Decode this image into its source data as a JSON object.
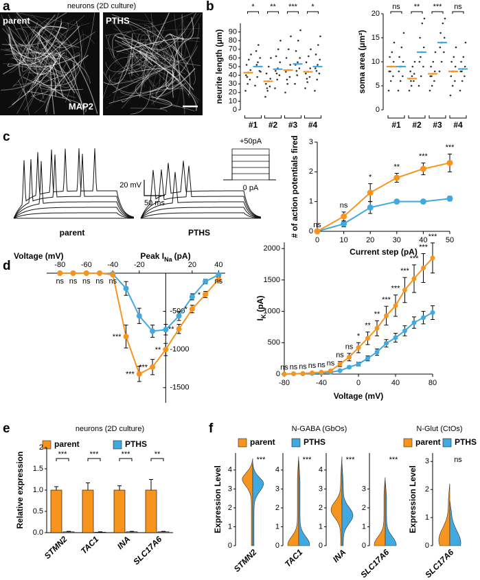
{
  "chart_data": [
    {
      "type": "image",
      "panel": "a",
      "title": "neurons (2D culture)",
      "images": [
        {
          "label": "parent",
          "stain": "MAP2"
        },
        {
          "label": "PTHS"
        }
      ]
    },
    {
      "type": "dot",
      "panel": "b",
      "ylabel": "neurite length (μm)",
      "categories": [
        "#1",
        "#2",
        "#3",
        "#4"
      ],
      "significance": [
        "*",
        "**",
        "***",
        "*"
      ],
      "ylim": [
        0,
        100
      ],
      "yticks": [
        0,
        10,
        20,
        30,
        40,
        50,
        60,
        70,
        80,
        90
      ],
      "series": [
        {
          "color": "#f7941d",
          "medians": [
            43,
            33,
            46,
            44
          ],
          "points": [
            [
              22,
              30,
              35,
              40,
              43,
              46,
              52,
              58,
              64,
              38
            ],
            [
              15,
              22,
              27,
              30,
              33,
              36,
              42,
              50,
              60,
              25
            ],
            [
              20,
              30,
              38,
              44,
              46,
              52,
              60,
              70,
              85,
              35
            ],
            [
              25,
              32,
              38,
              42,
              44,
              48,
              55,
              62,
              70,
              36
            ]
          ]
        },
        {
          "color": "#3fa9e0",
          "medians": [
            50,
            47,
            53,
            50
          ],
          "points": [
            [
              28,
              38,
              45,
              50,
              55,
              60,
              68,
              75,
              44,
              52
            ],
            [
              25,
              35,
              40,
              45,
              48,
              55,
              62,
              70,
              80,
              42
            ],
            [
              30,
              40,
              48,
              52,
              55,
              60,
              68,
              80,
              92,
              45
            ],
            [
              22,
              35,
              42,
              48,
              52,
              58,
              64,
              75,
              85,
              45
            ]
          ]
        }
      ]
    },
    {
      "type": "dot",
      "ylabel": "soma area (μm²)",
      "categories": [
        "#1",
        "#2",
        "#3",
        "#4"
      ],
      "significance": [
        "ns",
        "**",
        "***",
        "ns"
      ],
      "ylim": [
        0,
        20
      ],
      "yticks": [
        0,
        5,
        10,
        15,
        20
      ],
      "series": [
        {
          "color": "#f7941d",
          "medians": [
            9,
            6.5,
            7.5,
            8
          ],
          "points": [
            [
              4,
              6,
              7,
              8,
              9,
              10,
              11,
              12,
              14,
              8
            ],
            [
              4,
              5,
              6,
              6.5,
              7,
              7.5,
              8,
              9,
              10,
              6
            ],
            [
              4,
              5,
              6,
              7,
              7.5,
              8,
              9,
              10,
              12,
              7
            ],
            [
              3,
              5,
              6,
              7,
              8,
              9,
              10,
              11,
              13,
              8
            ]
          ]
        },
        {
          "color": "#3fa9e0",
          "medians": [
            9,
            12,
            14,
            8.5
          ],
          "points": [
            [
              4,
              6,
              7,
              8,
              9,
              10,
              11,
              13,
              16,
              9
            ],
            [
              5,
              7,
              9,
              10,
              12,
              13,
              15,
              18,
              19,
              11
            ],
            [
              8,
              10,
              12,
              13,
              14,
              15,
              16,
              18,
              19,
              14
            ],
            [
              4,
              6,
              7,
              8,
              8.5,
              9,
              10,
              11,
              14,
              8
            ]
          ]
        }
      ]
    },
    {
      "type": "trace",
      "panel": "c",
      "labels": [
        "parent",
        "PTHS"
      ],
      "scale_y": "20 mV",
      "scale_x": "50 ms",
      "step_top": "+50pA",
      "step_bottom": "0 pA"
    },
    {
      "type": "line",
      "x": [
        0,
        10,
        20,
        30,
        40,
        50
      ],
      "xlim": [
        0,
        50
      ],
      "xticks": [
        0,
        10,
        20,
        30,
        40,
        50
      ],
      "ylim": [
        0,
        3
      ],
      "yticks": [
        0,
        1,
        2,
        3
      ],
      "xlabel": "Current step (pA)",
      "ylabel": "# of action potentials fired",
      "significance": [
        "ns",
        "ns",
        "*",
        "**",
        "***",
        "***"
      ],
      "series": [
        {
          "color": "#f7941d",
          "values": [
            0,
            0.5,
            1.3,
            1.8,
            2.1,
            2.3
          ],
          "errors": [
            0,
            0.15,
            0.3,
            0.15,
            0.2,
            0.3
          ]
        },
        {
          "color": "#3fa9e0",
          "values": [
            0,
            0.25,
            0.8,
            1.0,
            1.0,
            1.1
          ],
          "errors": [
            0,
            0.1,
            0.2,
            0.05,
            0.05,
            0.08
          ]
        }
      ]
    },
    {
      "type": "line",
      "panel": "d",
      "x": [
        -80,
        -70,
        -60,
        -50,
        -40,
        -30,
        -20,
        -10,
        0,
        10,
        20,
        30,
        40
      ],
      "xlim": [
        -90,
        45
      ],
      "xticks": [
        -80,
        -60,
        -40,
        -20,
        20,
        40
      ],
      "ylim": [
        -1700,
        0
      ],
      "yticks": [
        -500,
        -1000,
        -1500
      ],
      "xlabel": "Voltage (mV)",
      "ylabel": {
        "text": "Peak I",
        "sub": "Na",
        "unit": "(pA)"
      },
      "significance": [
        "ns",
        "ns",
        "ns",
        "ns",
        "ns",
        "***",
        "***",
        "***",
        "**",
        "**",
        "*",
        "*",
        "ns"
      ],
      "series": [
        {
          "color": "#f7941d",
          "values": [
            0,
            0,
            0,
            0,
            -20,
            -830,
            -1320,
            -1230,
            -1000,
            -730,
            -470,
            -280,
            -80
          ],
          "errors": [
            0,
            0,
            0,
            0,
            20,
            150,
            100,
            100,
            80,
            60,
            50,
            40,
            30
          ]
        },
        {
          "color": "#3fa9e0",
          "values": [
            0,
            0,
            0,
            0,
            -10,
            -200,
            -560,
            -760,
            -740,
            -560,
            -310,
            -110,
            -20
          ],
          "errors": [
            0,
            0,
            0,
            0,
            10,
            90,
            100,
            80,
            70,
            60,
            40,
            30,
            20
          ]
        }
      ]
    },
    {
      "type": "line",
      "x": [
        -80,
        -70,
        -60,
        -50,
        -40,
        -30,
        -20,
        -10,
        0,
        10,
        20,
        30,
        40,
        50,
        60,
        70,
        80
      ],
      "xlim": [
        -80,
        80
      ],
      "xticks": [
        -80,
        -40,
        0,
        40,
        80
      ],
      "ylim": [
        0,
        2100
      ],
      "yticks": [
        0,
        500,
        1000,
        1500,
        2000
      ],
      "xlabel": "Voltage (mV)",
      "ylabel": {
        "text": "I",
        "sub": "K",
        "unit": "(pA)"
      },
      "significance": [
        "ns",
        "ns",
        "ns",
        "ns",
        "ns",
        "ns",
        "ns",
        "ns",
        "*",
        "**",
        "**",
        "***",
        "***",
        "***",
        "***",
        "***",
        "***"
      ],
      "series": [
        {
          "color": "#f7941d",
          "values": [
            0,
            5,
            10,
            20,
            30,
            50,
            160,
            270,
            420,
            570,
            730,
            930,
            1090,
            1340,
            1520,
            1690,
            1850
          ],
          "errors": [
            5,
            5,
            5,
            10,
            10,
            20,
            40,
            60,
            80,
            100,
            120,
            150,
            170,
            200,
            220,
            230,
            240
          ]
        },
        {
          "color": "#3fa9e0",
          "values": [
            0,
            5,
            5,
            10,
            15,
            30,
            55,
            110,
            160,
            250,
            350,
            490,
            580,
            690,
            820,
            900,
            980
          ],
          "errors": [
            5,
            5,
            5,
            5,
            5,
            10,
            15,
            20,
            30,
            40,
            50,
            60,
            70,
            80,
            90,
            100,
            110
          ]
        }
      ]
    },
    {
      "type": "bar",
      "panel": "e",
      "title": "neurons (2D culture)",
      "ylabel": "Relative expression",
      "categories": [
        "STMN2",
        "TAC1",
        "INA",
        "SLC17A6"
      ],
      "ylim": [
        0,
        2
      ],
      "yticks": [
        {
          "value": 0,
          "label": "0.0"
        },
        0.5,
        {
          "value": 1,
          "label": "1.0"
        },
        1.5,
        2
      ],
      "significance": [
        "***",
        "***",
        "***",
        "**"
      ],
      "legend": "top",
      "series": [
        {
          "name": "parent",
          "color": "#f7941d",
          "values": [
            1,
            1,
            1,
            1
          ],
          "errors": [
            0.08,
            0.17,
            0.1,
            0.25
          ]
        },
        {
          "name": "PTHS",
          "color": "#3fa9e0",
          "values": [
            0.02,
            0.01,
            0.02,
            0.02
          ],
          "errors": [
            0.01,
            0.01,
            0.01,
            0.01
          ]
        }
      ]
    },
    {
      "type": "violin",
      "panel": "f",
      "title": "N-GABA (GbOs)",
      "legend": "top",
      "ylabel": "Expression Level",
      "categories": [
        "STMN2"
      ],
      "ylim": [
        0,
        4.9
      ],
      "yticks": [
        0,
        1,
        2,
        3,
        4
      ],
      "significance": [
        "***"
      ],
      "series": [
        {
          "name": "parent",
          "color": "#f7941d",
          "values": [
            4.6
          ],
          "modes": [
            3.6
          ]
        },
        {
          "name": "PTHS",
          "color": "#3fa9e0",
          "values": [
            4.4
          ],
          "modes": [
            3.3
          ]
        }
      ]
    },
    {
      "type": "violin",
      "categories": [
        "TAC1"
      ],
      "ylim": [
        0,
        4.9
      ],
      "yticks": [
        0,
        1,
        2,
        3,
        4
      ],
      "significance": [
        "***"
      ],
      "series": [
        {
          "color": "#f7941d",
          "values": [
            4.7
          ],
          "modes": [
            0.05
          ]
        },
        {
          "color": "#3fa9e0",
          "values": [
            4.5
          ],
          "modes": [
            0.05
          ]
        }
      ]
    },
    {
      "type": "violin",
      "categories": [
        "INA"
      ],
      "ylim": [
        0,
        4.9
      ],
      "yticks": [
        0,
        1,
        2,
        3,
        4
      ],
      "significance": [
        "***"
      ],
      "series": [
        {
          "color": "#f7941d",
          "values": [
            4.7
          ],
          "modes": [
            1.9
          ]
        },
        {
          "color": "#3fa9e0",
          "values": [
            4.3
          ],
          "modes": [
            1.6
          ]
        }
      ]
    },
    {
      "type": "violin",
      "categories": [
        "SLC17A6"
      ],
      "ylim": [
        0,
        4.9
      ],
      "yticks": [
        0,
        1,
        2,
        3
      ],
      "significance": [
        "***"
      ],
      "series": [
        {
          "color": "#f7941d",
          "values": [
            3.6
          ],
          "modes": [
            0.05
          ]
        },
        {
          "color": "#3fa9e0",
          "values": [
            3.4
          ],
          "modes": [
            0.05
          ]
        }
      ]
    },
    {
      "type": "violin",
      "title": "N-Glut (CtOs)",
      "legend": "top",
      "ylabel": "Expression Level",
      "categories": [
        "SLC17A6"
      ],
      "ylim": [
        0,
        3.3
      ],
      "yticks": [
        0,
        1,
        2,
        3
      ],
      "significance": [
        "ns"
      ],
      "series": [
        {
          "name": "parent",
          "color": "#f7941d",
          "values": [
            2.2
          ],
          "modes": [
            0.2
          ]
        },
        {
          "name": "PTHS",
          "color": "#3fa9e0",
          "values": [
            1.6
          ],
          "modes": [
            0.1
          ]
        }
      ]
    }
  ]
}
